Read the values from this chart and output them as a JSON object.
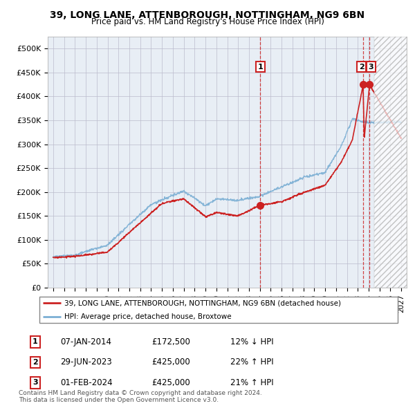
{
  "title": "39, LONG LANE, ATTENBOROUGH, NOTTINGHAM, NG9 6BN",
  "subtitle": "Price paid vs. HM Land Registry's House Price Index (HPI)",
  "ylabel_ticks": [
    "£0",
    "£50K",
    "£100K",
    "£150K",
    "£200K",
    "£250K",
    "£300K",
    "£350K",
    "£400K",
    "£450K",
    "£500K"
  ],
  "ytick_values": [
    0,
    50000,
    100000,
    150000,
    200000,
    250000,
    300000,
    350000,
    400000,
    450000,
    500000
  ],
  "xlim_start": 1994.5,
  "xlim_end": 2027.5,
  "xticks": [
    1995,
    1996,
    1997,
    1998,
    1999,
    2000,
    2001,
    2002,
    2003,
    2004,
    2005,
    2006,
    2007,
    2008,
    2009,
    2010,
    2011,
    2012,
    2013,
    2014,
    2015,
    2016,
    2017,
    2018,
    2019,
    2020,
    2021,
    2022,
    2023,
    2024,
    2025,
    2026,
    2027
  ],
  "hpi_color": "#7bafd4",
  "price_color": "#cc2222",
  "dashed_color": "#cc2222",
  "marker_color": "#cc2222",
  "annotation_box_color": "#cc2222",
  "grid_color": "#bbbbcc",
  "chart_bg": "#e8eef5",
  "background_color": "#ffffff",
  "legend_label_red": "39, LONG LANE, ATTENBOROUGH, NOTTINGHAM, NG9 6BN (detached house)",
  "legend_label_blue": "HPI: Average price, detached house, Broxtowe",
  "table_rows": [
    {
      "num": "1",
      "date": "07-JAN-2014",
      "price": "£172,500",
      "hpi": "12% ↓ HPI"
    },
    {
      "num": "2",
      "date": "29-JUN-2023",
      "price": "£425,000",
      "hpi": "22% ↑ HPI"
    },
    {
      "num": "3",
      "date": "01-FEB-2024",
      "price": "£425,000",
      "hpi": "21% ↑ HPI"
    }
  ],
  "footnote": "Contains HM Land Registry data © Crown copyright and database right 2024.\nThis data is licensed under the Open Government Licence v3.0.",
  "sale1_year": 2014.03,
  "sale1_price": 172500,
  "sale2_year": 2023.49,
  "sale2_price": 425000,
  "sale3_year": 2024.08,
  "sale3_price": 425000,
  "vline1_year": 2014.03,
  "vline2_year": 2023.49,
  "vline3_year": 2024.08,
  "hatch_start": 2024.5,
  "hatch_end": 2027.5,
  "ylim_max": 525000
}
